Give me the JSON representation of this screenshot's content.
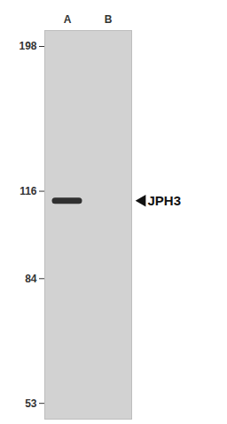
{
  "chart_data": {
    "type": "western_blot",
    "categories": [
      "A",
      "B"
    ],
    "values": [
      112,
      null
    ],
    "color": "#1e1e1e",
    "annotations": [
      {
        "text": "JPH3",
        "y": 112
      }
    ],
    "log": "y",
    "ylim": [
      50,
      210
    ],
    "yticks": [
      198,
      116,
      84,
      53
    ]
  }
}
